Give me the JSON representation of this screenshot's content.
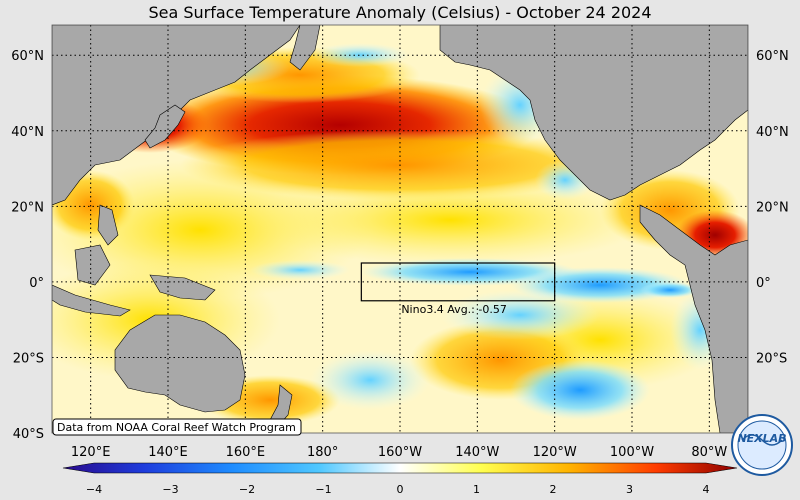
{
  "title": "Sea Surface Temperature Anomaly (Celsius) - October 24 2024",
  "lat_labels": [
    "60°N",
    "40°N",
    "20°N",
    "0°",
    "20°S",
    "40°S"
  ],
  "lat_values": [
    60,
    40,
    20,
    0,
    -20,
    -40
  ],
  "lon_labels": [
    "120°E",
    "140°E",
    "160°E",
    "180°",
    "160°W",
    "140°W",
    "120°W",
    "100°W",
    "80°W"
  ],
  "lon_values": [
    120,
    140,
    160,
    180,
    200,
    220,
    240,
    260,
    280
  ],
  "map_extent": {
    "lon_min": 110,
    "lon_max": 290,
    "lat_min": -40,
    "lat_max": 68
  },
  "nino_box": {
    "label": "Nino3.4 Avg.: -0.57",
    "lon_min": 190,
    "lon_max": 240,
    "lat_min": -5,
    "lat_max": 5
  },
  "source_note": "Data from NOAA Coral Reef Watch Program",
  "colorbar": {
    "ticks": [
      "−4",
      "−3",
      "−2",
      "−1",
      "0",
      "1",
      "2",
      "3",
      "4"
    ],
    "tick_values": [
      -4,
      -3,
      -2,
      -1,
      0,
      1,
      2,
      3,
      4
    ],
    "range": [
      -4,
      4
    ],
    "colors": [
      "#2a0a8c",
      "#1e3cdc",
      "#1e8cff",
      "#50c8ff",
      "#ffffff",
      "#ffff50",
      "#ffb400",
      "#ff3c00",
      "#8c0000"
    ]
  },
  "colors": {
    "land": "#a8a8a8",
    "ocean_neutral": "#fffbe0",
    "grid": "#000000"
  },
  "logo_text": "NEXLAB"
}
